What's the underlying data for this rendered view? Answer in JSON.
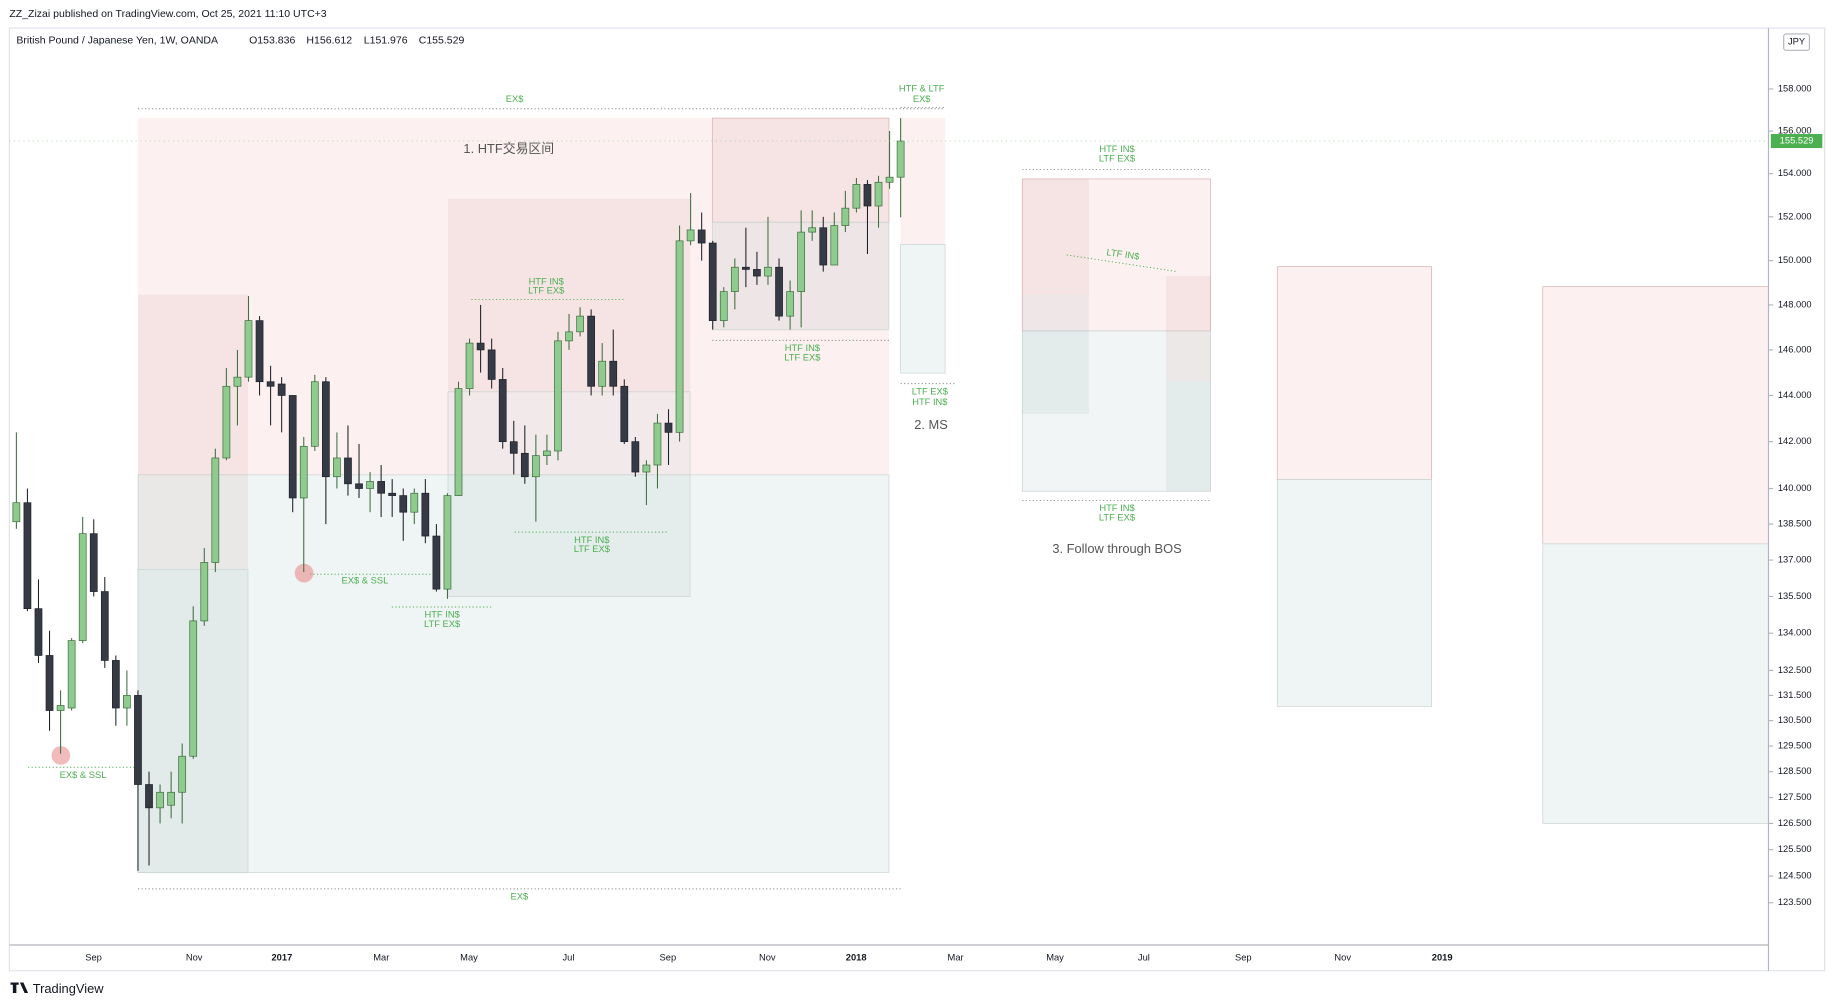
{
  "header": {
    "publisher": "ZZ_Zizai published on TradingView.com, Oct 25, 2021 11:10 UTC+3",
    "footer": "TradingView"
  },
  "chart_data": {
    "type": "candlestick",
    "legend": "British Pound / Japanese Yen, 1W, OANDA",
    "ohlc_labels": [
      "O153.836",
      "H156.612",
      "L151.976",
      "C155.529"
    ],
    "currency": "JPY",
    "price_badge": "155.529",
    "log": true,
    "up_color": "#8fca8f",
    "down_color": "#363a45",
    "open": [
      138.6,
      139.4,
      135.0,
      133.1,
      130.9,
      131.0,
      133.7,
      138.1,
      135.7,
      132.9,
      131.0,
      131.5,
      128.0,
      127.1,
      127.2,
      127.7,
      129.1,
      134.5,
      136.9,
      141.3,
      144.4,
      144.8,
      147.3,
      144.6,
      144.5,
      144.0,
      139.6,
      141.8,
      144.6,
      140.5,
      141.3,
      140.2,
      140.0,
      140.3,
      139.8,
      139.7,
      139.0,
      139.8,
      138.0,
      135.8,
      139.7,
      144.3,
      146.3,
      146.0,
      144.7,
      142.0,
      141.5,
      140.5,
      141.4,
      141.6,
      146.4,
      146.8,
      147.5,
      144.4,
      145.5,
      144.4,
      142.0,
      140.7,
      141.0,
      142.8,
      142.4,
      150.9,
      151.4,
      150.8,
      147.3,
      148.6,
      149.7,
      149.6,
      149.3,
      149.7,
      147.5,
      148.6,
      151.3,
      151.5,
      149.8,
      151.6,
      152.4,
      153.5,
      152.5,
      153.6,
      153.836
    ],
    "high": [
      142.4,
      140.0,
      136.2,
      134.1,
      131.7,
      133.8,
      138.8,
      138.7,
      136.3,
      133.1,
      132.5,
      131.7,
      128.5,
      128.0,
      128.5,
      129.6,
      135.1,
      137.5,
      141.7,
      145.2,
      146.0,
      148.4,
      147.5,
      145.3,
      144.8,
      144.0,
      142.2,
      144.9,
      144.8,
      142.4,
      142.7,
      141.9,
      140.7,
      141.0,
      140.4,
      140.0,
      140.0,
      140.4,
      138.5,
      139.8,
      144.6,
      146.5,
      148.0,
      146.5,
      145.2,
      142.9,
      142.7,
      142.3,
      142.3,
      146.8,
      147.6,
      147.9,
      147.8,
      146.3,
      146.9,
      144.7,
      142.2,
      141.2,
      143.2,
      143.4,
      151.6,
      153.1,
      152.2,
      150.9,
      148.8,
      150.1,
      151.5,
      150.4,
      152.0,
      150.1,
      149.1,
      152.3,
      152.3,
      152.0,
      152.2,
      153.2,
      153.8,
      153.7,
      153.9,
      156.0,
      156.612
    ],
    "low": [
      138.3,
      134.9,
      132.8,
      130.1,
      129.2,
      130.9,
      133.6,
      135.5,
      132.6,
      130.3,
      130.3,
      124.7,
      124.9,
      126.5,
      126.7,
      126.5,
      129.0,
      134.3,
      136.5,
      141.2,
      142.7,
      144.6,
      144.0,
      142.7,
      142.4,
      139.0,
      136.5,
      141.6,
      138.5,
      140.0,
      139.7,
      139.6,
      139.0,
      138.8,
      138.8,
      137.8,
      138.5,
      137.7,
      135.7,
      135.4,
      139.7,
      144.0,
      145.0,
      144.3,
      141.7,
      140.6,
      140.2,
      138.6,
      141.0,
      141.2,
      146.0,
      146.6,
      144.0,
      144.0,
      144.0,
      141.9,
      140.5,
      139.3,
      140.0,
      141.0,
      142.0,
      150.7,
      150.0,
      146.9,
      147.0,
      147.8,
      148.8,
      148.9,
      148.9,
      147.3,
      146.9,
      147.0,
      150.9,
      149.5,
      149.8,
      151.3,
      152.2,
      150.3,
      151.5,
      153.3,
      151.976
    ],
    "close": [
      139.4,
      135.0,
      133.1,
      130.9,
      131.1,
      133.7,
      138.1,
      135.7,
      132.9,
      131.0,
      131.5,
      128.0,
      127.1,
      127.7,
      127.7,
      129.1,
      134.5,
      136.9,
      141.3,
      144.4,
      144.8,
      147.3,
      144.6,
      144.4,
      144.0,
      139.6,
      141.8,
      144.6,
      140.5,
      141.3,
      140.2,
      140.0,
      140.3,
      139.8,
      139.7,
      139.0,
      139.8,
      138.0,
      135.8,
      139.7,
      144.3,
      146.3,
      146.0,
      144.7,
      142.0,
      141.5,
      140.5,
      141.4,
      141.6,
      146.4,
      146.8,
      147.5,
      144.4,
      145.5,
      144.4,
      142.0,
      140.7,
      141.0,
      142.8,
      142.4,
      150.9,
      151.4,
      150.8,
      147.3,
      148.6,
      149.7,
      149.6,
      149.3,
      149.7,
      147.5,
      148.6,
      151.3,
      151.5,
      149.8,
      151.6,
      152.4,
      153.5,
      152.5,
      153.6,
      153.836,
      155.529
    ],
    "xticks": [
      {
        "label": "Sep"
      },
      {
        "label": "Nov"
      },
      {
        "label": "2017"
      },
      {
        "label": "Mar"
      },
      {
        "label": "May"
      },
      {
        "label": "Jul"
      },
      {
        "label": "Sep"
      },
      {
        "label": "Nov"
      },
      {
        "label": "2018"
      },
      {
        "label": "Mar"
      },
      {
        "label": "May"
      },
      {
        "label": "Jul"
      },
      {
        "label": "Sep"
      },
      {
        "label": "Nov"
      },
      {
        "label": "2019"
      }
    ],
    "ylim": [
      121.93,
      160.94
    ],
    "yticks": [
      {
        "value": 158,
        "label": "158.000"
      },
      {
        "value": 156,
        "label": "156.000"
      },
      {
        "value": 154,
        "label": "154.000"
      },
      {
        "value": 152,
        "label": "152.000"
      },
      {
        "value": 150,
        "label": "150.000"
      },
      {
        "value": 148,
        "label": "148.000"
      },
      {
        "value": 146,
        "label": "146.000"
      },
      {
        "value": 144,
        "label": "144.000"
      },
      {
        "value": 142,
        "label": "142.000"
      },
      {
        "value": 140,
        "label": "140.000"
      },
      {
        "value": 138.5,
        "label": "138.500"
      },
      {
        "value": 137,
        "label": "137.000"
      },
      {
        "value": 135.5,
        "label": "135.500"
      },
      {
        "value": 134,
        "label": "134.000"
      },
      {
        "value": 132.5,
        "label": "132.500"
      },
      {
        "value": 131.5,
        "label": "131.500"
      },
      {
        "value": 130.5,
        "label": "130.500"
      },
      {
        "value": 129.5,
        "label": "129.500"
      },
      {
        "value": 128.5,
        "label": "128.500"
      },
      {
        "value": 127.5,
        "label": "127.500"
      },
      {
        "value": 126.5,
        "label": "126.500"
      },
      {
        "value": 125.5,
        "label": "125.500"
      },
      {
        "value": 124.5,
        "label": "124.500"
      },
      {
        "value": 123.5,
        "label": "123.500"
      }
    ],
    "annotations": [
      "1. HTF交易区间",
      "2. MS",
      "3. Follow through BOS",
      "EX$",
      "EX$",
      "HTF IN$",
      "LTF EX$",
      "HTF IN$",
      "LTF EX$",
      "HTF IN$",
      "LTF EX$",
      "EX$ & SSL",
      "EX$ & SSL",
      "HTF IN$",
      "LTF EX$",
      "LTF EX$",
      "HTF IN$",
      "HTF & LTF",
      "EX$",
      "HTF IN$",
      "LTF EX$",
      "HTF IN$",
      "LTF EX$",
      "LTF IN$"
    ]
  }
}
